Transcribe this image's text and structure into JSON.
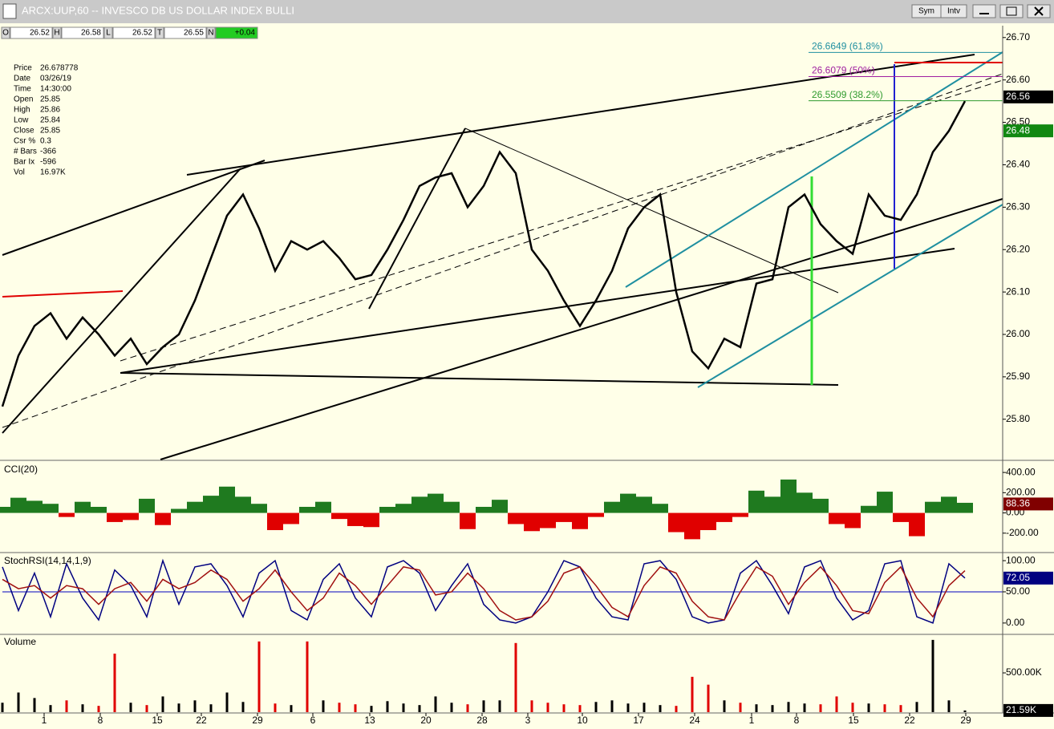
{
  "window": {
    "title": "ARCX:UUP,60 -- INVESCO DB US DOLLAR INDEX BULLI",
    "buttons": [
      "Sym",
      "Intv"
    ]
  },
  "quote_bar": {
    "fields": [
      {
        "label": "O",
        "value": "26.52"
      },
      {
        "label": "H",
        "value": "26.58"
      },
      {
        "label": "L",
        "value": "26.52"
      },
      {
        "label": "T",
        "value": "26.55"
      },
      {
        "label": "N",
        "value": "+0.04"
      }
    ]
  },
  "data_window": {
    "rows": [
      [
        "Price",
        "26.678778"
      ],
      [
        "Date",
        "03/26/19"
      ],
      [
        "Time",
        "14:30:00"
      ],
      [
        "Open",
        "25.85"
      ],
      [
        "High",
        "25.86"
      ],
      [
        "Low",
        "25.84"
      ],
      [
        "Close",
        "25.85"
      ],
      [
        "Csr %",
        "0.3"
      ],
      [
        "# Bars",
        "-366"
      ],
      [
        "Bar Ix",
        "-596"
      ],
      [
        "Vol",
        "16.97K"
      ]
    ]
  },
  "chart_data": [
    {
      "type": "line",
      "x": [
        0,
        2,
        4,
        6,
        8,
        10,
        12,
        14,
        16,
        18,
        20,
        22,
        24,
        26,
        28,
        30,
        32,
        34,
        36,
        38,
        40,
        42,
        44,
        46,
        48,
        50,
        52,
        54,
        56,
        58,
        60,
        62,
        64,
        66,
        68,
        70,
        72,
        74,
        76,
        78,
        80,
        82,
        84,
        86,
        88,
        90,
        92,
        94,
        96,
        98,
        100,
        102,
        104,
        106,
        108,
        110,
        112,
        114,
        116,
        118,
        120
      ],
      "series": [
        {
          "color": "#000000",
          "values": [
            25.83,
            25.95,
            26.02,
            26.05,
            25.99,
            26.04,
            26.0,
            25.95,
            25.99,
            25.93,
            25.97,
            26.0,
            26.08,
            26.18,
            26.28,
            26.33,
            26.25,
            26.15,
            26.22,
            26.2,
            26.22,
            26.18,
            26.13,
            26.14,
            26.2,
            26.27,
            26.35,
            26.37,
            26.38,
            26.3,
            26.35,
            26.43,
            26.38,
            26.2,
            26.15,
            26.08,
            26.02,
            26.08,
            26.15,
            26.25,
            26.3,
            26.33,
            26.1,
            25.96,
            25.92,
            25.99,
            25.97,
            26.12,
            26.13,
            26.3,
            26.33,
            26.26,
            26.22,
            26.19,
            26.33,
            26.28,
            26.27,
            26.33,
            26.43,
            26.48,
            26.55
          ]
        }
      ],
      "xlim": [
        0,
        124.7
      ],
      "xticks": [
        {
          "value": 5.2,
          "label": "1"
        },
        {
          "value": 12.2,
          "label": "8"
        },
        {
          "value": 19.3,
          "label": "15"
        },
        {
          "value": 24.8,
          "label": "22"
        },
        {
          "value": 31.8,
          "label": "29"
        },
        {
          "value": 38.7,
          "label": "6"
        },
        {
          "value": 45.8,
          "label": "13"
        },
        {
          "value": 52.8,
          "label": "20"
        },
        {
          "value": 59.8,
          "label": "28"
        },
        {
          "value": 65.5,
          "label": "3"
        },
        {
          "value": 72.3,
          "label": "10"
        },
        {
          "value": 79.3,
          "label": "17"
        },
        {
          "value": 86.3,
          "label": "24"
        },
        {
          "value": 93.4,
          "label": "1"
        },
        {
          "value": 99.0,
          "label": "8"
        },
        {
          "value": 106.1,
          "label": "15"
        },
        {
          "value": 113.1,
          "label": "22"
        },
        {
          "value": 120.1,
          "label": "29"
        }
      ],
      "ylim": [
        25.705,
        26.728
      ],
      "yticks": [
        {
          "value": 25.8,
          "label": "25.80"
        },
        {
          "value": 25.9,
          "label": "25.90"
        },
        {
          "value": 26.0,
          "label": "26.00"
        },
        {
          "value": 26.1,
          "label": "26.10"
        },
        {
          "value": 26.2,
          "label": "26.20"
        },
        {
          "value": 26.3,
          "label": "26.30"
        },
        {
          "value": 26.4,
          "label": "26.40"
        },
        {
          "value": 26.5,
          "label": "26.50"
        },
        {
          "value": 26.6,
          "label": "26.60"
        },
        {
          "value": 26.7,
          "label": "26.70"
        }
      ],
      "fib_levels": [
        {
          "value": 26.6649,
          "label": "26.6649 (61.8%)",
          "color": "#1f8fa0"
        },
        {
          "value": 26.6079,
          "label": "26.6079 (50%)",
          "color": "#a020a0"
        },
        {
          "value": 26.5509,
          "label": "26.5509 (38.2%)",
          "color": "#2e9a2e"
        }
      ],
      "badges": [
        {
          "value": 26.56,
          "color": "#000000"
        },
        {
          "value": 26.48,
          "color": "#118811"
        }
      ]
    },
    {
      "type": "bar",
      "title": "CCI(20)",
      "color": "#1f7a1f",
      "negative_color": "#e00000",
      "values": [
        60,
        150,
        120,
        90,
        -40,
        110,
        60,
        -90,
        -70,
        140,
        -120,
        40,
        110,
        170,
        260,
        160,
        90,
        -170,
        -110,
        60,
        110,
        -60,
        -130,
        -140,
        60,
        90,
        160,
        190,
        110,
        -160,
        60,
        130,
        -110,
        -180,
        -150,
        -90,
        -160,
        -40,
        110,
        190,
        160,
        90,
        -190,
        -260,
        -170,
        -90,
        -40,
        220,
        160,
        330,
        200,
        140,
        -110,
        -150,
        70,
        210,
        -90,
        -230,
        110,
        160,
        100
      ],
      "ylim": [
        -384,
        496
      ],
      "yticks": [
        {
          "value": -200,
          "label": "-200.00"
        },
        {
          "value": 0,
          "label": "0.00"
        },
        {
          "value": 200,
          "label": "200.00"
        },
        {
          "value": 400,
          "label": "400.00"
        }
      ],
      "badges": [
        {
          "value": 88.36,
          "color": "#800000"
        }
      ]
    },
    {
      "type": "line",
      "title": "StochRSI(14,14,1,9)",
      "series": [
        {
          "color": "#000080",
          "values": [
            90,
            20,
            80,
            10,
            95,
            40,
            5,
            85,
            60,
            10,
            100,
            30,
            90,
            95,
            60,
            10,
            80,
            100,
            20,
            5,
            70,
            95,
            40,
            10,
            90,
            100,
            80,
            20,
            60,
            95,
            30,
            5,
            0,
            10,
            50,
            100,
            90,
            40,
            10,
            5,
            95,
            100,
            70,
            10,
            0,
            5,
            80,
            100,
            60,
            15,
            90,
            100,
            40,
            5,
            20,
            95,
            100,
            10,
            0,
            95,
            72
          ]
        },
        {
          "color": "#a01010",
          "values": [
            70,
            55,
            60,
            40,
            60,
            55,
            30,
            55,
            65,
            35,
            70,
            55,
            65,
            85,
            70,
            35,
            55,
            85,
            50,
            20,
            40,
            80,
            60,
            30,
            60,
            90,
            85,
            45,
            50,
            80,
            55,
            20,
            5,
            10,
            35,
            80,
            90,
            60,
            25,
            10,
            60,
            90,
            80,
            35,
            10,
            5,
            50,
            90,
            75,
            30,
            65,
            90,
            60,
            20,
            15,
            65,
            90,
            40,
            10,
            60,
            84
          ]
        }
      ],
      "ylim": [
        -16.9,
        110.4
      ],
      "yticks": [
        {
          "value": 0,
          "label": "0.00"
        },
        {
          "value": 50,
          "label": "50.00"
        },
        {
          "value": 100,
          "label": "100.00"
        }
      ],
      "badges": [
        {
          "value": 72.05,
          "color": "#000080"
        }
      ]
    },
    {
      "type": "bar",
      "title": "Volume",
      "color": "#000000",
      "down_color": "#e00000",
      "values": [
        120000,
        250000,
        180000,
        90000,
        150000,
        100000,
        80000,
        745000,
        120000,
        90000,
        200000,
        110000,
        150000,
        100000,
        250000,
        130000,
        900000,
        110000,
        90000,
        900000,
        150000,
        120000,
        100000,
        80000,
        140000,
        110000,
        90000,
        200000,
        120000,
        100000,
        150000,
        150000,
        880000,
        150000,
        120000,
        100000,
        90000,
        130000,
        150000,
        110000,
        120000,
        90000,
        80000,
        450000,
        350000,
        150000,
        120000,
        100000,
        90000,
        130000,
        110000,
        100000,
        200000,
        120000,
        110000,
        100000,
        90000,
        130000,
        920000,
        150000,
        21590
      ],
      "ylim": [
        0,
        980000
      ],
      "yticks": [
        {
          "value": 500000,
          "label": "500.00K"
        }
      ],
      "badges": [
        {
          "value": 21590,
          "label": "21.59K",
          "color": "#000000"
        }
      ]
    }
  ]
}
